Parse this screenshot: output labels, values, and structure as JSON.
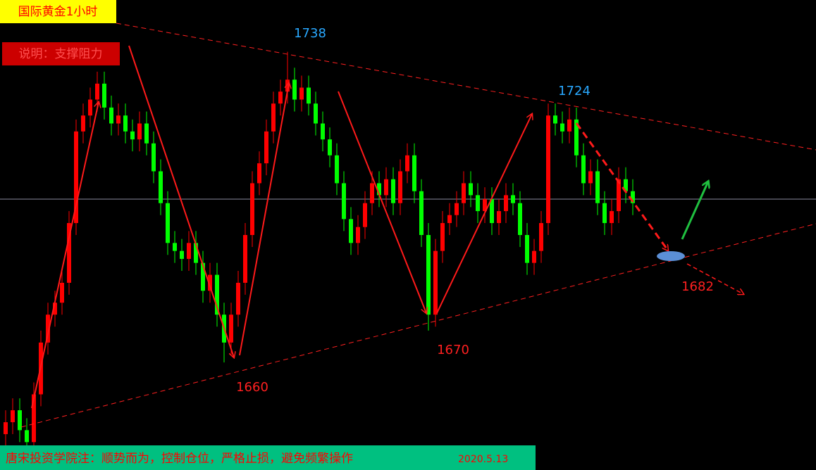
{
  "chart_data": {
    "type": "candlestick",
    "title": "国际黄金1小时",
    "subtitle": "说明：支撑阻力",
    "footer": {
      "note": "唐宋投资学院注：顺势而为，控制仓位，严格止损，避免频繁操作",
      "date": "2020.5.13"
    },
    "ylim": [
      1633,
      1751
    ],
    "up_color": "#ff0000",
    "down_color": "#00ff00",
    "price_line": 1701,
    "open": [
      1642,
      1645,
      1648,
      1643,
      1640,
      1652,
      1665,
      1672,
      1675,
      1680,
      1695,
      1718,
      1722,
      1726,
      1730,
      1724,
      1720,
      1722,
      1718,
      1716,
      1720,
      1715,
      1708,
      1700,
      1690,
      1688,
      1686,
      1690,
      1685,
      1678,
      1682,
      1672,
      1665,
      1672,
      1680,
      1692,
      1705,
      1710,
      1718,
      1725,
      1728,
      1731,
      1726,
      1729,
      1725,
      1720,
      1716,
      1712,
      1705,
      1696,
      1690,
      1694,
      1700,
      1705,
      1702,
      1706,
      1700,
      1708,
      1712,
      1703,
      1692,
      1672,
      1688,
      1695,
      1697,
      1700,
      1705,
      1702,
      1698,
      1701,
      1695,
      1698,
      1702,
      1700,
      1692,
      1685,
      1688,
      1695,
      1722,
      1720,
      1718,
      1721,
      1712,
      1705,
      1708,
      1700,
      1695,
      1698,
      1706,
      1703
    ],
    "high": [
      1648,
      1651,
      1651,
      1646,
      1655,
      1668,
      1675,
      1678,
      1683,
      1698,
      1721,
      1725,
      1729,
      1733,
      1733,
      1727,
      1725,
      1725,
      1721,
      1723,
      1723,
      1718,
      1711,
      1703,
      1693,
      1691,
      1693,
      1693,
      1688,
      1685,
      1685,
      1675,
      1675,
      1683,
      1695,
      1708,
      1713,
      1721,
      1728,
      1731,
      1738,
      1734,
      1732,
      1732,
      1728,
      1723,
      1719,
      1715,
      1708,
      1699,
      1697,
      1703,
      1708,
      1708,
      1709,
      1709,
      1711,
      1715,
      1715,
      1706,
      1695,
      1691,
      1698,
      1700,
      1703,
      1708,
      1708,
      1705,
      1704,
      1704,
      1701,
      1705,
      1705,
      1703,
      1695,
      1691,
      1698,
      1725,
      1725,
      1723,
      1724,
      1724,
      1715,
      1711,
      1711,
      1703,
      1701,
      1709,
      1709,
      1706
    ],
    "low": [
      1639,
      1642,
      1640,
      1637,
      1637,
      1649,
      1662,
      1669,
      1672,
      1677,
      1692,
      1715,
      1719,
      1723,
      1721,
      1717,
      1717,
      1715,
      1713,
      1713,
      1712,
      1705,
      1697,
      1687,
      1685,
      1683,
      1683,
      1682,
      1675,
      1675,
      1669,
      1660,
      1662,
      1669,
      1677,
      1689,
      1702,
      1707,
      1715,
      1722,
      1725,
      1723,
      1723,
      1722,
      1717,
      1713,
      1709,
      1702,
      1693,
      1687,
      1687,
      1691,
      1697,
      1699,
      1699,
      1697,
      1697,
      1705,
      1700,
      1689,
      1668,
      1669,
      1685,
      1692,
      1694,
      1697,
      1699,
      1695,
      1695,
      1692,
      1692,
      1695,
      1697,
      1689,
      1682,
      1682,
      1685,
      1692,
      1717,
      1715,
      1715,
      1709,
      1702,
      1702,
      1697,
      1692,
      1692,
      1695,
      1700,
      1697
    ],
    "close": [
      1645,
      1648,
      1643,
      1640,
      1652,
      1665,
      1672,
      1675,
      1680,
      1695,
      1718,
      1722,
      1726,
      1730,
      1724,
      1720,
      1722,
      1718,
      1716,
      1720,
      1715,
      1708,
      1700,
      1690,
      1688,
      1686,
      1690,
      1685,
      1678,
      1682,
      1672,
      1665,
      1672,
      1680,
      1692,
      1705,
      1710,
      1718,
      1725,
      1728,
      1731,
      1726,
      1729,
      1725,
      1720,
      1716,
      1712,
      1705,
      1696,
      1690,
      1694,
      1700,
      1705,
      1702,
      1706,
      1700,
      1708,
      1712,
      1703,
      1692,
      1672,
      1688,
      1695,
      1697,
      1700,
      1705,
      1702,
      1698,
      1701,
      1695,
      1698,
      1702,
      1700,
      1692,
      1685,
      1688,
      1695,
      1722,
      1720,
      1718,
      1721,
      1712,
      1705,
      1708,
      1700,
      1695,
      1698,
      1706,
      1703,
      1700
    ],
    "annotations": [
      {
        "text": "1738",
        "color": "#29a8ff"
      },
      {
        "text": "1724",
        "color": "#29a8ff"
      },
      {
        "text": "1660",
        "color": "#ff2020"
      },
      {
        "text": "1670",
        "color": "#ff2020"
      },
      {
        "text": "1682",
        "color": "#ff2020"
      }
    ]
  }
}
